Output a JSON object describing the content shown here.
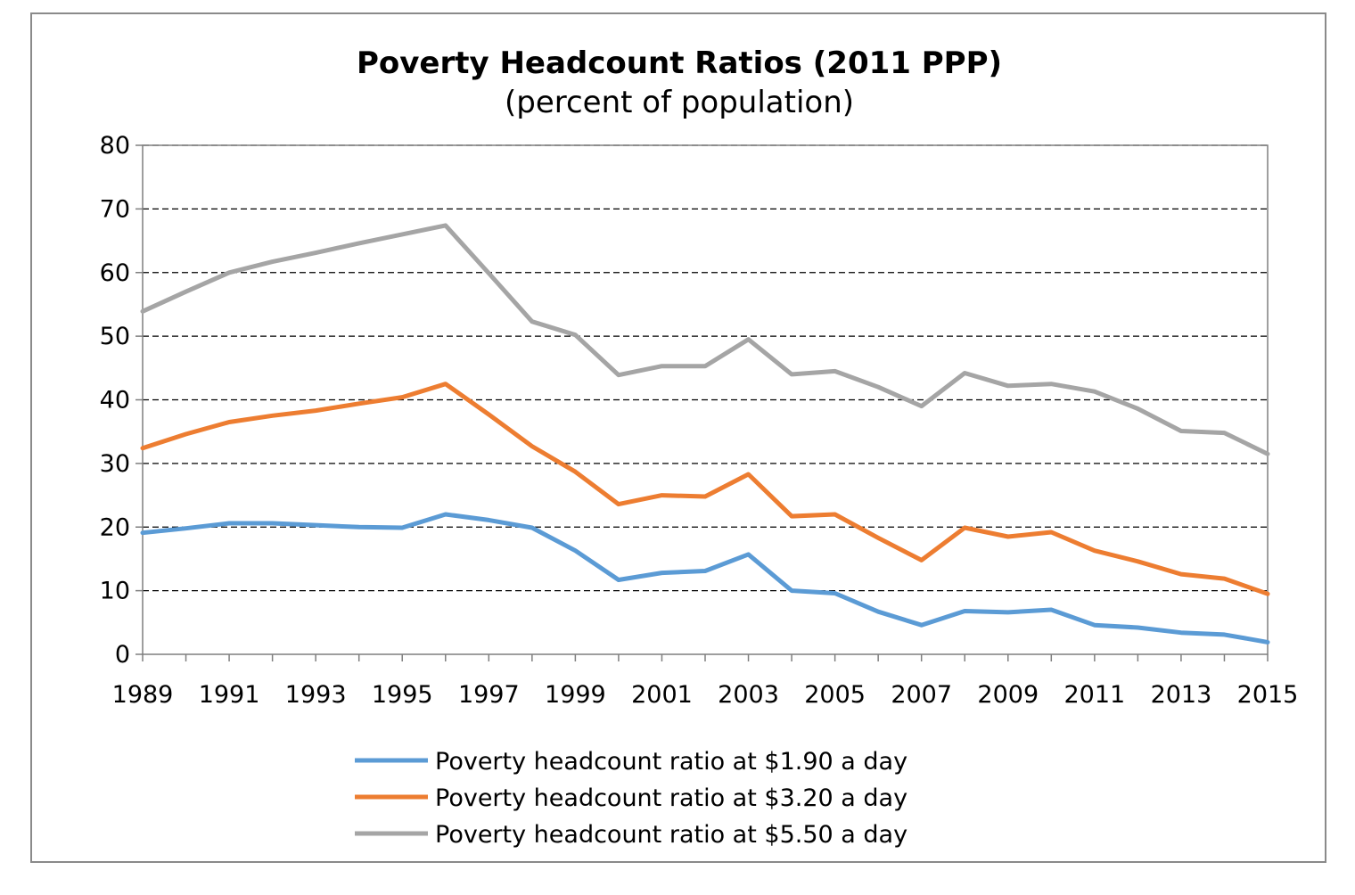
{
  "chart_data": {
    "type": "line",
    "title": "Poverty Headcount Ratios (2011 PPP)",
    "subtitle": "(percent of population)",
    "xlabel": "",
    "ylabel": "",
    "x": [
      1989,
      1990,
      1991,
      1992,
      1993,
      1994,
      1995,
      1996,
      1997,
      1998,
      1999,
      2000,
      2001,
      2002,
      2003,
      2004,
      2005,
      2006,
      2007,
      2008,
      2009,
      2010,
      2011,
      2012,
      2013,
      2014,
      2015
    ],
    "x_tick_labels": [
      "1989",
      "1991",
      "1993",
      "1995",
      "1997",
      "1999",
      "2001",
      "2003",
      "2005",
      "2007",
      "2009",
      "2011",
      "2013",
      "2015"
    ],
    "xlim": [
      1989,
      2015
    ],
    "ylim": [
      0,
      80
    ],
    "y_tick_labels": [
      "0",
      "10",
      "20",
      "30",
      "40",
      "50",
      "60",
      "70",
      "80"
    ],
    "grid": "horizontal dashed",
    "legend_position": "bottom",
    "series": [
      {
        "name": "Poverty headcount ratio at $1.90 a day",
        "color": "#5b9bd5",
        "values": [
          19.1,
          19.8,
          20.6,
          20.6,
          20.3,
          20.0,
          19.9,
          22.0,
          21.1,
          19.9,
          16.3,
          11.7,
          12.8,
          13.1,
          15.7,
          10.0,
          9.6,
          6.7,
          4.6,
          6.8,
          6.6,
          7.0,
          4.6,
          4.2,
          3.4,
          3.1,
          1.9
        ]
      },
      {
        "name": "Poverty headcount ratio at $3.20 a day",
        "color": "#ed7d31",
        "values": [
          32.4,
          34.6,
          36.5,
          37.5,
          38.3,
          39.4,
          40.4,
          42.5,
          37.7,
          32.7,
          28.7,
          23.6,
          25.0,
          24.8,
          28.3,
          21.7,
          22.0,
          18.3,
          14.8,
          19.9,
          18.5,
          19.2,
          16.3,
          14.6,
          12.6,
          11.9,
          9.5
        ]
      },
      {
        "name": "Poverty headcount ratio at $5.50 a day",
        "color": "#a5a5a5",
        "values": [
          53.9,
          57.0,
          60.0,
          61.7,
          63.1,
          64.6,
          66.0,
          67.4,
          59.9,
          52.3,
          50.2,
          43.9,
          45.3,
          45.3,
          49.5,
          44.0,
          44.5,
          42.0,
          39.0,
          44.2,
          42.2,
          42.5,
          41.3,
          38.6,
          35.1,
          34.8,
          31.5
        ]
      }
    ]
  }
}
